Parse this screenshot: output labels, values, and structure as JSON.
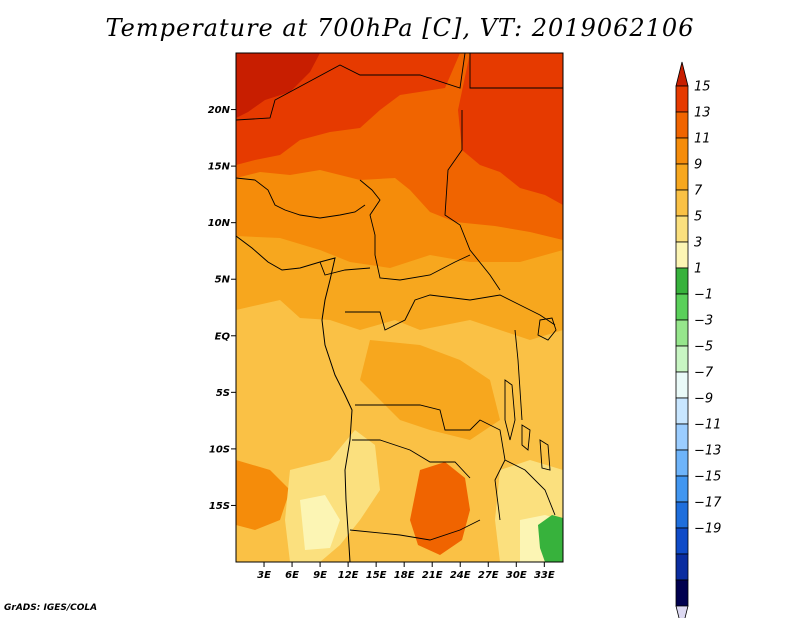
{
  "title": "Temperature at 700hPa [C], VT: 2019062106",
  "credit": "GrADS: IGES/COLA",
  "map": {
    "region": "Central Africa",
    "lon_range": [
      0,
      35
    ],
    "lat_range": [
      -20,
      25
    ],
    "lat_ticks": [
      {
        "value": 20,
        "label": "20N"
      },
      {
        "value": 15,
        "label": "15N"
      },
      {
        "value": 10,
        "label": "10N"
      },
      {
        "value": 5,
        "label": "5N"
      },
      {
        "value": 0,
        "label": "EQ"
      },
      {
        "value": -5,
        "label": "5S"
      },
      {
        "value": -10,
        "label": "10S"
      },
      {
        "value": -15,
        "label": "15S"
      }
    ],
    "lon_ticks": [
      {
        "value": 3,
        "label": "3E"
      },
      {
        "value": 6,
        "label": "6E"
      },
      {
        "value": 9,
        "label": "9E"
      },
      {
        "value": 12,
        "label": "12E"
      },
      {
        "value": 15,
        "label": "15E"
      },
      {
        "value": 18,
        "label": "18E"
      },
      {
        "value": 21,
        "label": "21E"
      },
      {
        "value": 24,
        "label": "24E"
      },
      {
        "value": 27,
        "label": "27E"
      },
      {
        "value": 30,
        "label": "30E"
      },
      {
        "value": 33,
        "label": "33E"
      }
    ]
  },
  "colorbar": {
    "levels": [
      "15",
      "13",
      "11",
      "9",
      "7",
      "5",
      "3",
      "1",
      "−1",
      "−3",
      "−5",
      "−7",
      "−9",
      "−11",
      "−13",
      "−15",
      "−17",
      "−19"
    ],
    "colors": [
      "#c81e00",
      "#e63a00",
      "#f06400",
      "#f58c0a",
      "#f7a71e",
      "#fac145",
      "#fbe07e",
      "#fcf5b4",
      "#37b23c",
      "#5ad05a",
      "#96e68c",
      "#c8f5c3",
      "#eafaf8",
      "#c8e6ff",
      "#9bcdff",
      "#6eb4fa",
      "#4196f0",
      "#1e6edc",
      "#0f4bc8",
      "#0a2da0",
      "#00004f",
      "#ddd9f2"
    ]
  }
}
